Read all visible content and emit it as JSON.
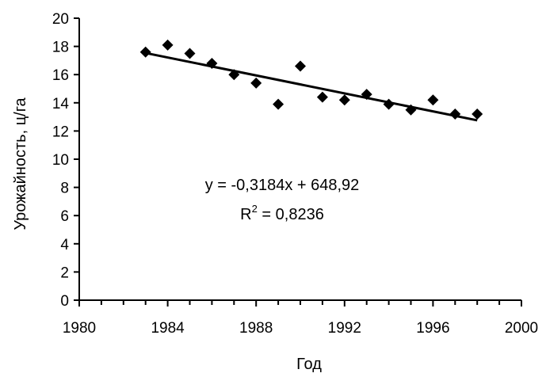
{
  "chart_data": {
    "type": "scatter",
    "title": "",
    "xlabel": "Год",
    "ylabel": "Урожайность, ц/га",
    "xlim": [
      1980,
      2000
    ],
    "ylim": [
      0,
      20
    ],
    "x_major_ticks": [
      1980,
      1984,
      1988,
      1992,
      1996,
      2000
    ],
    "y_ticks": [
      0,
      2,
      4,
      6,
      8,
      10,
      12,
      14,
      16,
      18,
      20
    ],
    "grid": false,
    "legend": "none",
    "series": [
      {
        "x": [
          1983,
          1984,
          1985,
          1986,
          1987,
          1988,
          1989,
          1990,
          1991,
          1992,
          1993,
          1994,
          1995,
          1996,
          1997,
          1998
        ],
        "y": [
          17.6,
          18.1,
          17.5,
          16.8,
          16.0,
          15.4,
          13.9,
          16.6,
          14.4,
          14.2,
          14.6,
          13.9,
          13.5,
          14.2,
          13.2,
          13.2
        ],
        "marker": "diamond",
        "color": "#000000"
      }
    ],
    "trendline": {
      "type": "linear",
      "slope": -0.3184,
      "intercept": 648.92,
      "x_range": [
        1983,
        1998
      ],
      "color": "#000000"
    },
    "annotations": {
      "equation": "y = -0,3184x + 648,92",
      "r2_prefix": "R",
      "r2_sup": "2",
      "r2_value": " = 0,8236"
    }
  }
}
